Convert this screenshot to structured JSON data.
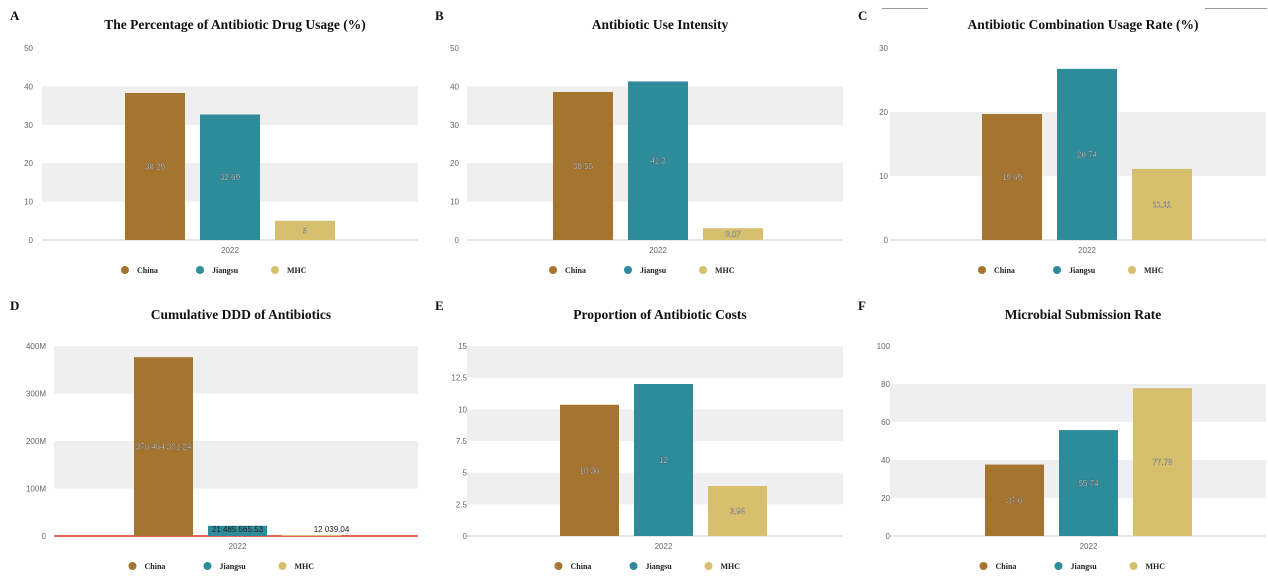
{
  "colors": {
    "China": "#a5742e",
    "Jiangsu": "#2e8b9a",
    "MHC": "#d6c06e",
    "band": "#efefef",
    "axis": "#cccccc",
    "tick_text": "#666666",
    "ref_line": "#e0302a"
  },
  "chart_data": [
    {
      "letter": "A",
      "type": "bar",
      "title": "The Percentage of Antibiotic Drug Usage (%)",
      "categories": [
        "2022"
      ],
      "series": [
        {
          "name": "China",
          "values": [
            38.29
          ]
        },
        {
          "name": "Jiangsu",
          "values": [
            32.69
          ]
        },
        {
          "name": "MHC",
          "values": [
            5
          ]
        }
      ],
      "data_labels": [
        "38.29",
        "32.69",
        "5"
      ],
      "yticks": [
        "0",
        "10",
        "20",
        "30",
        "40",
        "50"
      ],
      "ylim": [
        0,
        50
      ],
      "grid": "alternating bands",
      "legend": "bottom-center"
    },
    {
      "letter": "B",
      "type": "bar",
      "title": "Antibiotic Use Intensity",
      "categories": [
        "2022"
      ],
      "series": [
        {
          "name": "China",
          "values": [
            38.55
          ]
        },
        {
          "name": "Jiangsu",
          "values": [
            41.3
          ]
        },
        {
          "name": "MHC",
          "values": [
            3.07
          ]
        }
      ],
      "data_labels": [
        "38.55",
        "41.3",
        "3.07"
      ],
      "yticks": [
        "0",
        "10",
        "20",
        "30",
        "40",
        "50"
      ],
      "ylim": [
        0,
        50
      ],
      "grid": "alternating bands",
      "legend": "bottom-center"
    },
    {
      "letter": "C",
      "type": "bar",
      "title": "Antibiotic Combination Usage Rate (%)",
      "categories": [
        "2022"
      ],
      "series": [
        {
          "name": "China",
          "values": [
            19.69
          ]
        },
        {
          "name": "Jiangsu",
          "values": [
            26.74
          ]
        },
        {
          "name": "MHC",
          "values": [
            11.11
          ]
        }
      ],
      "data_labels": [
        "19.69",
        "26.74",
        "11.11"
      ],
      "yticks": [
        "0",
        "10",
        "20",
        "30"
      ],
      "ylim": [
        0,
        30
      ],
      "grid": "alternating bands",
      "legend": "bottom-center"
    },
    {
      "letter": "D",
      "type": "bar",
      "title": "Cumulative DDD of Antibiotics",
      "categories": [
        "2022"
      ],
      "series": [
        {
          "name": "China",
          "values": [
            376464301.24
          ]
        },
        {
          "name": "Jiangsu",
          "values": [
            21485565.53
          ]
        },
        {
          "name": "MHC",
          "values": [
            12039.04
          ]
        }
      ],
      "data_labels": [
        "376 464 301.24",
        "21 485 565.53",
        "12 039.04"
      ],
      "yticks": [
        "0",
        "100M",
        "200M",
        "300M",
        "400M"
      ],
      "ylim": [
        0,
        400000000
      ],
      "grid": "alternating bands",
      "baseline": "red line at 0",
      "legend": "bottom-center"
    },
    {
      "letter": "E",
      "type": "bar",
      "title": "Proportion of Antibiotic Costs",
      "categories": [
        "2022"
      ],
      "series": [
        {
          "name": "China",
          "values": [
            10.36
          ]
        },
        {
          "name": "Jiangsu",
          "values": [
            12
          ]
        },
        {
          "name": "MHC",
          "values": [
            3.95
          ]
        }
      ],
      "data_labels": [
        "10.36",
        "12",
        "3.95"
      ],
      "yticks": [
        "0",
        "2.5",
        "5",
        "7.5",
        "10",
        "12.5",
        "15"
      ],
      "ylim": [
        0,
        15
      ],
      "grid": "alternating bands",
      "legend": "bottom-center"
    },
    {
      "letter": "F",
      "type": "bar",
      "title": "Microbial Submission Rate",
      "categories": [
        "2022"
      ],
      "series": [
        {
          "name": "China",
          "values": [
            37.6
          ]
        },
        {
          "name": "Jiangsu",
          "values": [
            55.74
          ]
        },
        {
          "name": "MHC",
          "values": [
            77.78
          ]
        }
      ],
      "data_labels": [
        "37.6",
        "55.74",
        "77.78"
      ],
      "yticks": [
        "0",
        "20",
        "40",
        "60",
        "80",
        "100"
      ],
      "ylim": [
        0,
        100
      ],
      "grid": "alternating bands",
      "legend": "bottom-center"
    }
  ]
}
